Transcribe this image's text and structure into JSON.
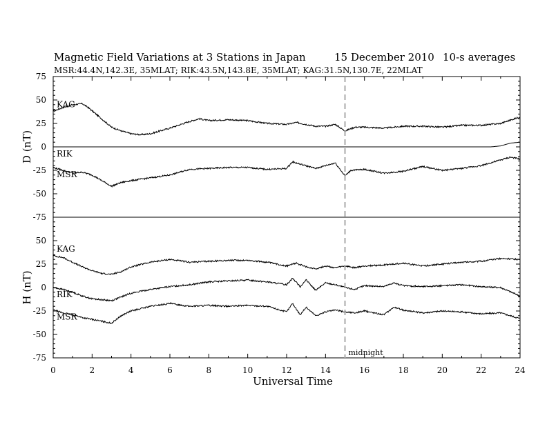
{
  "chart_data": {
    "type": "line",
    "title": "Magnetic Field Variations at 3 Stations in Japan",
    "date_label": "15 December 2010",
    "averaging_label": "10-s averages",
    "stations_label": "MSR:44.4N,142.3E, 35MLAT;  RIK:43.5N,143.8E, 35MLAT;  KAG:31.5N,130.7E, 22MLAT",
    "xlabel": "Universal Time",
    "xlim": [
      0,
      24
    ],
    "xticks": [
      "0",
      "2",
      "4",
      "6",
      "8",
      "10",
      "12",
      "14",
      "16",
      "18",
      "20",
      "22",
      "24"
    ],
    "marker": {
      "x": 15,
      "label": "midnight",
      "style": "dashed",
      "color": "#aaaaaa"
    },
    "panels": [
      {
        "ylabel": "D (nT)",
        "ylim": [
          -75,
          75
        ],
        "yticks": [
          "75",
          "50",
          "25",
          "0",
          "-25",
          "-50",
          "-75"
        ],
        "series": [
          {
            "name": "KAG",
            "x": [
              0,
              0.5,
              1,
              1.5,
              1.8,
              2.2,
              2.6,
              3,
              3.5,
              4,
              4.5,
              5,
              6,
              7,
              7.5,
              8,
              9,
              10,
              11,
              12,
              12.5,
              13,
              13.5,
              14,
              14.5,
              15,
              15.5,
              16,
              17,
              18,
              19,
              20,
              21,
              22,
              23,
              24
            ],
            "y": [
              38,
              42,
              45,
              46,
              42,
              35,
              28,
              21,
              17,
              14,
              13,
              14,
              20,
              27,
              30,
              28,
              29,
              28,
              25,
              24,
              26,
              24,
              22,
              22,
              24,
              17,
              21,
              21,
              20,
              22,
              22,
              21,
              23,
              23,
              25,
              32
            ]
          },
          {
            "name": "RIK",
            "x": [
              0,
              2,
              4,
              6,
              8,
              10,
              12,
              14,
              16,
              18,
              20,
              22,
              22.5,
              23,
              23.5,
              24
            ],
            "y": [
              0,
              0,
              0,
              0,
              0,
              0,
              0,
              0,
              0,
              0,
              0,
              0,
              0,
              1,
              4,
              5
            ]
          },
          {
            "name": "MSR",
            "x": [
              0,
              0.5,
              1,
              1.5,
              2,
              2.5,
              3,
              3.5,
              4,
              5,
              6,
              7,
              8,
              9,
              10,
              11,
              12,
              12.3,
              12.8,
              13.5,
              14,
              14.5,
              15,
              15.3,
              16,
              17,
              18,
              19,
              20,
              20.5,
              21,
              22,
              23,
              23.5,
              24
            ],
            "y": [
              -22,
              -25,
              -28,
              -27,
              -30,
              -36,
              -42,
              -38,
              -36,
              -33,
              -30,
              -24,
              -23,
              -22,
              -22,
              -24,
              -23,
              -16,
              -19,
              -23,
              -20,
              -17,
              -31,
              -25,
              -24,
              -28,
              -26,
              -21,
              -25,
              -24,
              -23,
              -20,
              -14,
              -11,
              -13
            ]
          }
        ]
      },
      {
        "ylabel": "H (nT)",
        "ylim": [
          -75,
          75
        ],
        "yticks": [
          "",
          "50",
          "25",
          "0",
          "-25",
          "-50",
          "-75"
        ],
        "series": [
          {
            "name": "KAG",
            "x": [
              0,
              0.5,
              1,
              1.5,
              2,
              2.5,
              3,
              3.5,
              4,
              5,
              6,
              7,
              8,
              9,
              10,
              11,
              12,
              12.5,
              13,
              13.5,
              14,
              14.5,
              15,
              15.5,
              16,
              17,
              18,
              19,
              20,
              21,
              22,
              23,
              24
            ],
            "y": [
              34,
              32,
              27,
              22,
              18,
              15,
              14,
              17,
              22,
              27,
              30,
              27,
              28,
              29,
              29,
              27,
              23,
              26,
              22,
              20,
              23,
              21,
              23,
              21,
              23,
              24,
              26,
              23,
              25,
              27,
              28,
              31,
              30
            ]
          },
          {
            "name": "RIK",
            "x": [
              0,
              0.5,
              1,
              1.5,
              2,
              2.5,
              3,
              3.5,
              4,
              5,
              6,
              7,
              8,
              9,
              10,
              11,
              12,
              12.3,
              12.7,
              13,
              13.5,
              14,
              14.5,
              15,
              15.5,
              16,
              17,
              17.5,
              18,
              19,
              20,
              21,
              22,
              23,
              24
            ],
            "y": [
              0,
              -2,
              -5,
              -9,
              -12,
              -13,
              -14,
              -10,
              -6,
              -2,
              1,
              3,
              6,
              7,
              8,
              6,
              3,
              10,
              1,
              8,
              -3,
              5,
              3,
              0,
              -2,
              2,
              1,
              5,
              2,
              1,
              2,
              3,
              1,
              0,
              -9
            ]
          },
          {
            "name": "MSR",
            "x": [
              0,
              0.5,
              1,
              1.5,
              2,
              2.5,
              3,
              3.5,
              4,
              5,
              6,
              7,
              8,
              9,
              10,
              11,
              12,
              12.3,
              12.7,
              13,
              13.5,
              14,
              14.5,
              15,
              15.5,
              16,
              17,
              17.5,
              18,
              19,
              20,
              21,
              22,
              23,
              24
            ],
            "y": [
              -24,
              -27,
              -29,
              -32,
              -34,
              -36,
              -38,
              -30,
              -25,
              -20,
              -17,
              -20,
              -19,
              -20,
              -19,
              -20,
              -26,
              -17,
              -29,
              -21,
              -30,
              -26,
              -24,
              -26,
              -27,
              -25,
              -29,
              -21,
              -24,
              -27,
              -25,
              -26,
              -28,
              -27,
              -33
            ]
          }
        ]
      }
    ]
  }
}
